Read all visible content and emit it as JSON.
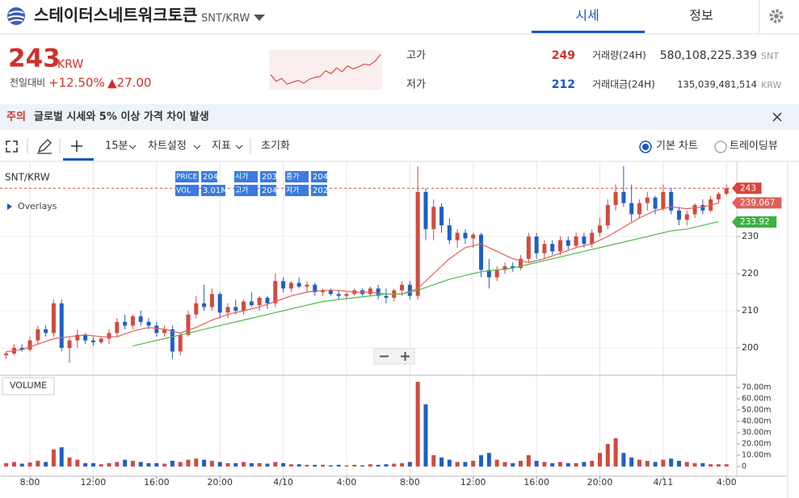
{
  "header": {
    "title": "스테이터스네트워크토큰",
    "pair": "SNT/KRW",
    "tabs": [
      "시세",
      "정보"
    ]
  },
  "quote": {
    "price": 243,
    "currency": "KRW",
    "change_label": "전일대비",
    "change_rate": "+12.50%",
    "change": "▲27.00",
    "high_label": "고가",
    "high": 249,
    "low_label": "저가",
    "low": 212,
    "volume_label": "거래량(24H)",
    "volume": "580,108,225.339",
    "volume_unit": "SNT",
    "amount_label": "거래대금(24H)",
    "amount": "135,039,481,514",
    "amount_unit": "KRW",
    "sparkline": {
      "color": "#d0302a",
      "ylim": [
        208,
        246
      ],
      "values": [
        222,
        215,
        218,
        212,
        214,
        216,
        213,
        217,
        219,
        220,
        226,
        223,
        229,
        225,
        231,
        228,
        230,
        233,
        232,
        236,
        243
      ]
    }
  },
  "notice": {
    "tag": "주의",
    "text": "글로벌 시세와 5% 이상 가격 차이 발생"
  },
  "toolbar": {
    "interval": "15분",
    "settings": "차트설정",
    "indicators": "지표",
    "reset": "초기화",
    "views": [
      "기본 차트",
      "트레이딩뷰"
    ]
  },
  "chart_data": {
    "type": "candlestick",
    "symbol": "SNT/KRW",
    "overlays": "Overlays",
    "volume_title": "VOLUME",
    "legend": [
      {
        "label": "PRICE",
        "value": 204
      },
      {
        "label": "시가",
        "value": 203
      },
      {
        "label": "종가",
        "value": 204
      },
      {
        "label": "VOL",
        "value": "3.01M"
      },
      {
        "label": "고가",
        "value": 204
      },
      {
        "label": "저가",
        "value": 202
      }
    ],
    "up_color": "#d24a3f",
    "down_color": "#1f5fc8",
    "xlim": [
      -0.78,
      92.3
    ],
    "xticks": [
      {
        "value": 3,
        "label": "8:00"
      },
      {
        "value": 11,
        "label": "12:00"
      },
      {
        "value": 19,
        "label": "16:00"
      },
      {
        "value": 27,
        "label": "20:00"
      },
      {
        "value": 35,
        "label": "4/10"
      },
      {
        "value": 43,
        "label": "4:00"
      },
      {
        "value": 51,
        "label": "8:00"
      },
      {
        "value": 59,
        "label": "12:00"
      },
      {
        "value": 67,
        "label": "16:00"
      },
      {
        "value": 75,
        "label": "20:00"
      },
      {
        "value": 83,
        "label": "4/11"
      },
      {
        "value": 91,
        "label": "4:00"
      }
    ],
    "ylim": [
      192.6,
      249.8
    ],
    "yticks": [
      200,
      210,
      220,
      230
    ],
    "vol_ylim": [
      -8.6,
      78.6
    ],
    "vol_ticks": [
      0,
      {
        "value": 10,
        "label": "10.00m"
      },
      {
        "value": 20,
        "label": "20.00m"
      },
      {
        "value": 30,
        "label": "30.00m"
      },
      {
        "value": 40,
        "label": "40.00m"
      },
      {
        "value": 50,
        "label": "50.00m"
      },
      {
        "value": 60,
        "label": "60.00m"
      },
      {
        "value": 70,
        "label": "70.00m"
      }
    ],
    "candles": [
      [
        198,
        199,
        197,
        198.5
      ],
      [
        198.5,
        201,
        198,
        200
      ],
      [
        200,
        201,
        199,
        199.5
      ],
      [
        199.5,
        203,
        199,
        202
      ],
      [
        202,
        206,
        201,
        205
      ],
      [
        205,
        206,
        203,
        204
      ],
      [
        204,
        213,
        203,
        212
      ],
      [
        212,
        213,
        199,
        200
      ],
      [
        200,
        203,
        196,
        202
      ],
      [
        202,
        205,
        200,
        203.5
      ],
      [
        203.5,
        204,
        201,
        202
      ],
      [
        202,
        203,
        200.5,
        201.5
      ],
      [
        201.5,
        203,
        201,
        202.5
      ],
      [
        202.5,
        205,
        201,
        204
      ],
      [
        204,
        208,
        203,
        207
      ],
      [
        207,
        209,
        205,
        206
      ],
      [
        206,
        209,
        205,
        208.5
      ],
      [
        208.5,
        210,
        206,
        207
      ],
      [
        207,
        208,
        205,
        206
      ],
      [
        206,
        207,
        203,
        204
      ],
      [
        204,
        206,
        203,
        205
      ],
      [
        205,
        206,
        197,
        199
      ],
      [
        199,
        204,
        198,
        203.5
      ],
      [
        203.5,
        210,
        203,
        209
      ],
      [
        209,
        214,
        208,
        212
      ],
      [
        212,
        217,
        210,
        211
      ],
      [
        211,
        216,
        210,
        214.5
      ],
      [
        214.5,
        215,
        208,
        209.5
      ],
      [
        209.5,
        212,
        208,
        211
      ],
      [
        211,
        213,
        209,
        210
      ],
      [
        210,
        213,
        209,
        212.5
      ],
      [
        212.5,
        215,
        211,
        211.5
      ],
      [
        211.5,
        214,
        210,
        213.5
      ],
      [
        213.5,
        214,
        210.5,
        212
      ],
      [
        212,
        220,
        211,
        218
      ],
      [
        218,
        219,
        215,
        216
      ],
      [
        216,
        218,
        215,
        217.5
      ],
      [
        217.5,
        219,
        216,
        216.5
      ],
      [
        216.5,
        218,
        215,
        217
      ],
      [
        217,
        217.5,
        214,
        215
      ],
      [
        215,
        216,
        214,
        215.5
      ],
      [
        215.5,
        216,
        214,
        214.5
      ],
      [
        214.5,
        215.5,
        213,
        214
      ],
      [
        214,
        215,
        213,
        214.5
      ],
      [
        214.5,
        216,
        214,
        215.5
      ],
      [
        215.5,
        216,
        214,
        214.5
      ],
      [
        214.5,
        216.5,
        214,
        216
      ],
      [
        216,
        217,
        213,
        214
      ],
      [
        214,
        216,
        212,
        213.5
      ],
      [
        213.5,
        216,
        212.5,
        215.5
      ],
      [
        215.5,
        218,
        214,
        217
      ],
      [
        217,
        218,
        213,
        214
      ],
      [
        214,
        249,
        213,
        242
      ],
      [
        242,
        243,
        229,
        232
      ],
      [
        232,
        240,
        229,
        238
      ],
      [
        238,
        239,
        231,
        233
      ],
      [
        233,
        235,
        228,
        229
      ],
      [
        229,
        232,
        227,
        231
      ],
      [
        231,
        232,
        228,
        229.5
      ],
      [
        229.5,
        231,
        227,
        230.5
      ],
      [
        230.5,
        231,
        219,
        221
      ],
      [
        221,
        224,
        216,
        219
      ],
      [
        219,
        222,
        218,
        221
      ],
      [
        221,
        223,
        220,
        222
      ],
      [
        222,
        223,
        220.5,
        221.5
      ],
      [
        221.5,
        225,
        221,
        224
      ],
      [
        224,
        231,
        223,
        230
      ],
      [
        230,
        231,
        224,
        225.5
      ],
      [
        225.5,
        229,
        224,
        228
      ],
      [
        228,
        229,
        225,
        226
      ],
      [
        226,
        230,
        225,
        229
      ],
      [
        229,
        230,
        226.5,
        227.5
      ],
      [
        227.5,
        231,
        227,
        230
      ],
      [
        230,
        231,
        227,
        228
      ],
      [
        228,
        232,
        227,
        231
      ],
      [
        231,
        235,
        230,
        233
      ],
      [
        233,
        240,
        232,
        238.5
      ],
      [
        238.5,
        244,
        237,
        242
      ],
      [
        242,
        249,
        238,
        239
      ],
      [
        239,
        244,
        234,
        236
      ],
      [
        236,
        240,
        235,
        239
      ],
      [
        239,
        242,
        237,
        240.5
      ],
      [
        240.5,
        241,
        236,
        237.5
      ],
      [
        237.5,
        244,
        237,
        242
      ],
      [
        242,
        243,
        236,
        237
      ],
      [
        237,
        238,
        233,
        234.5
      ],
      [
        234.5,
        237,
        233,
        236
      ],
      [
        236,
        239,
        235,
        238.5
      ],
      [
        238.5,
        240,
        236,
        237
      ],
      [
        237,
        241,
        236.5,
        240
      ],
      [
        240,
        242,
        239,
        241.5
      ],
      [
        241.5,
        244,
        241,
        243
      ]
    ],
    "volumes": [
      3,
      4,
      2.5,
      3.5,
      5,
      4,
      15,
      17,
      8,
      6,
      3,
      3,
      2,
      3,
      4,
      6,
      5,
      4,
      3,
      3,
      2.5,
      5,
      4,
      6,
      7,
      6,
      5,
      4,
      3,
      3,
      4,
      3,
      3,
      2.5,
      4,
      3,
      2,
      2,
      1.5,
      1.5,
      1.5,
      1,
      1.5,
      1,
      1.5,
      1,
      2,
      1.5,
      2,
      2.5,
      3,
      4,
      75,
      55,
      10,
      8,
      6,
      4,
      4,
      5,
      10,
      12,
      6,
      4,
      3,
      5,
      10,
      5,
      4,
      3,
      4,
      3,
      3,
      4,
      5,
      12,
      20,
      25,
      12,
      8,
      6,
      5,
      4,
      6,
      7,
      5,
      4,
      3,
      3,
      2,
      2,
      2
    ],
    "lines": [
      {
        "color": "#e0605a",
        "x": [
          0,
          2,
          4,
          6,
          8,
          10,
          12,
          14,
          16,
          18,
          20,
          22,
          24,
          26,
          28,
          30,
          32,
          34,
          36,
          38,
          40,
          42,
          44,
          46,
          48,
          50,
          52,
          54,
          56,
          58,
          60,
          62,
          64,
          66,
          68,
          70,
          72,
          74,
          76,
          78,
          80,
          82,
          84,
          86,
          88,
          90
        ],
        "values": [
          199,
          199.5,
          201,
          202.5,
          203,
          203.5,
          203,
          203,
          204.5,
          205.5,
          205,
          204,
          205.5,
          207.5,
          209,
          210,
          211,
          212.5,
          214,
          215,
          215.5,
          215.5,
          215,
          215,
          214.5,
          214.5,
          216,
          220,
          224,
          227,
          228,
          226,
          224,
          223,
          224,
          225.5,
          227,
          228,
          230,
          232.5,
          235,
          237,
          238,
          237.5,
          238,
          239
        ]
      },
      {
        "color": "#4cb84a",
        "x": [
          16,
          18,
          20,
          22,
          24,
          26,
          28,
          30,
          32,
          34,
          36,
          38,
          40,
          42,
          44,
          46,
          48,
          50,
          52,
          54,
          56,
          58,
          60,
          62,
          64,
          66,
          68,
          70,
          72,
          74,
          76,
          78,
          80,
          82,
          84,
          86,
          88,
          90
        ],
        "values": [
          200.5,
          201.5,
          202.5,
          203.5,
          204.5,
          205.5,
          206.5,
          207.5,
          208.5,
          209.5,
          210.5,
          211.5,
          212.5,
          213,
          213.5,
          214,
          214.5,
          214.5,
          215.5,
          217,
          218.5,
          219.5,
          220.5,
          221,
          221.5,
          222.5,
          223.5,
          224.5,
          225.5,
          226.5,
          227.5,
          228.5,
          229.5,
          230.5,
          231.5,
          232,
          233,
          234
        ]
      }
    ],
    "price_tags": [
      {
        "value": 243,
        "color": "#d9453c",
        "dashed": true
      },
      {
        "value": 239.067,
        "color": "#e0605a"
      },
      {
        "value": 233.92,
        "color": "#3cb043"
      }
    ]
  }
}
